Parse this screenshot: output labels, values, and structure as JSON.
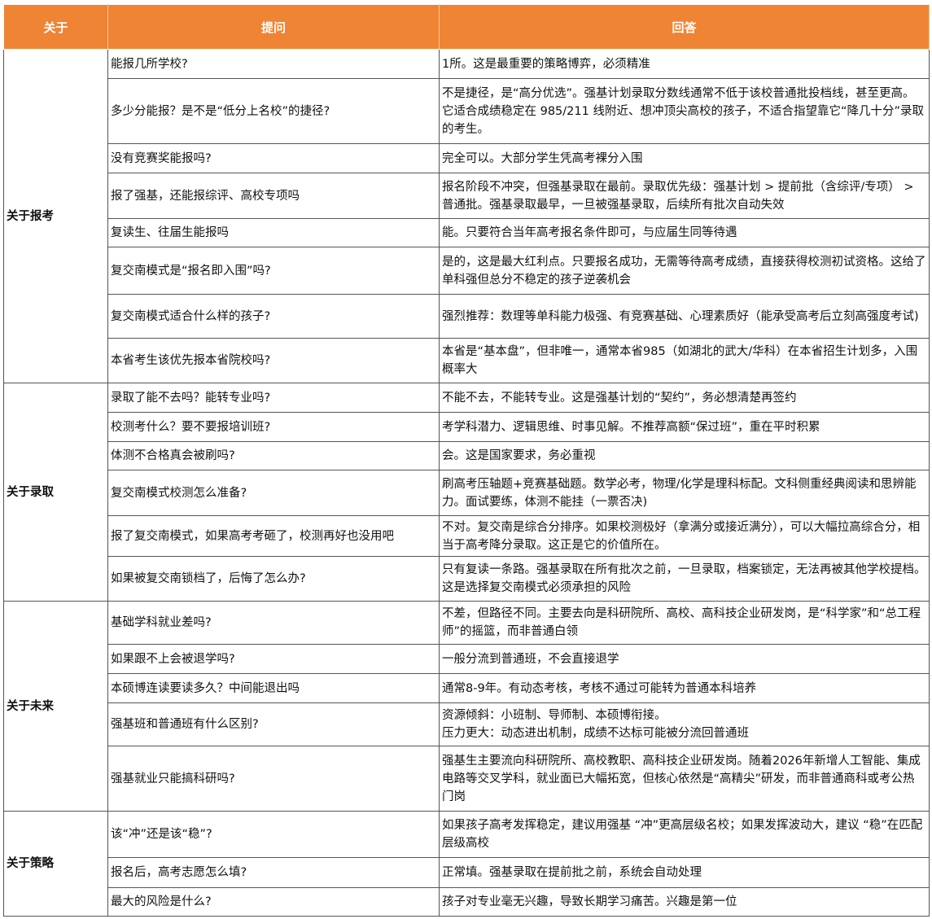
{
  "colors": {
    "header_bg": "#EE8434",
    "header_text": "#FFFFFF",
    "border": "#555555"
  },
  "header": {
    "col1": "关于",
    "col2": "提问",
    "col3": "回答"
  },
  "groups": [
    {
      "category": "关于报考",
      "rows": [
        {
          "q": "能报几所学校?",
          "a": "1所。这是最重要的策略博弈，必须精准"
        },
        {
          "q": "多少分能报？是不是“低分上名校”的捷径?",
          "a": "不是捷径，是“高分优选”。强基计划录取分数线通常不低于该校普通批投档线，甚至更高。它适合成绩稳定在 985/211 线附近、想冲顶尖高校的孩子，不适合指望靠它“降几十分”录取的考生。"
        },
        {
          "q": "没有竞赛奖能报吗?",
          "a": "完全可以。大部分学生凭高考裸分入围"
        },
        {
          "q": "报了强基，还能报综评、高校专项吗",
          "a": "报名阶段不冲突，但强基录取在最前。录取优先级：强基计划 > 提前批（含综评/专项） > 普通批。强基录取最早，一旦被强基录取，后续所有批次自动失效"
        },
        {
          "q": "复读生、往届生能报吗",
          "a": "能。只要符合当年高考报名条件即可，与应届生同等待遇"
        },
        {
          "q": "复交南模式是“报名即入围”吗?",
          "a": "是的，这是最大红利点。只要报名成功，无需等待高考成绩，直接获得校测初试资格。这给了单科强但总分不稳定的孩子逆袭机会"
        },
        {
          "q": "复交南模式适合什么样的孩子?",
          "a": "强烈推荐：数理等单科能力极强、有竞赛基础、心理素质好（能承受高考后立刻高强度考试)"
        },
        {
          "q": "本省考生该优先报本省院校吗?",
          "a": "本省是“基本盘”，但非唯一，通常本省985（如湖北的武大/华科）在本省招生计划多，入围概率大"
        }
      ]
    },
    {
      "category": "关于录取",
      "rows": [
        {
          "q": "录取了能不去吗？能转专业吗?",
          "a": "不能不去，不能转专业。这是强基计划的“契约”，务必想清楚再签约"
        },
        {
          "q": "校测考什么？要不要报培训班?",
          "a": "考学科潜力、逻辑思维、时事见解。不推荐高额“保过班”，重在平时积累"
        },
        {
          "q": "体测不合格真会被刷吗?",
          "a": "会。这是国家要求，务必重视"
        },
        {
          "q": "复交南模式校测怎么准备?",
          "a": "刷高考压轴题+竞赛基础题。数学必考，物理/化学是理科标配。文科侧重经典阅读和思辨能力。面试要练，体测不能挂（一票否决)"
        },
        {
          "q": "报了复交南模式，如果高考考砸了，校测再好也没用吧",
          "a": "不对。复交南是综合分排序。如果校测极好（拿满分或接近满分），可以大幅拉高综合分，相当于高考降分录取。这正是它的价值所在。"
        },
        {
          "q": "如果被复交南锁档了，后悔了怎么办?",
          "a": "只有复读一条路。强基录取在所有批次之前，一旦录取，档案锁定，无法再被其他学校提档。这是选择复交南模式必须承担的风险"
        }
      ]
    },
    {
      "category": "关于未来",
      "rows": [
        {
          "q": "基础学科就业差吗?",
          "a": "不差，但路径不同。主要去向是科研院所、高校、高科技企业研发岗，是“科学家”和“总工程师”的摇篮，而非普通白领"
        },
        {
          "q": "如果跟不上会被退学吗?",
          "a": "一般分流到普通班，不会直接退学"
        },
        {
          "q": "本硕博连读要读多久？中间能退出吗",
          "a": "通常8-9年。有动态考核，考核不通过可能转为普通本科培养"
        },
        {
          "q": "强基班和普通班有什么区别?",
          "a": "资源倾斜：小班制、导师制、本硕博衔接。\n压力更大：动态进出机制，成绩不达标可能被分流回普通班"
        },
        {
          "q": "强基就业只能搞科研吗?",
          "a": "强基生主要流向科研院所、高校教职、高科技企业研发岗。随着2026年新增人工智能、集成电路等交叉学科，就业面已大幅拓宽，但核心依然是“高精尖”研发，而非普通商科或考公热门岗"
        }
      ]
    },
    {
      "category": "关于策略",
      "rows": [
        {
          "q": "该“冲”还是该“稳”?",
          "a": "如果孩子高考发挥稳定，建议用强基 “冲”更高层级名校；如果发挥波动大，建议 “稳”在匹配层级高校"
        },
        {
          "q": "报名后，高考志愿怎么填?",
          "a": "正常填。强基录取在提前批之前，系统会自动处理"
        },
        {
          "q": "最大的风险是什么?",
          "a": "孩子对专业毫无兴趣，导致长期学习痛苦。兴趣是第一位"
        }
      ]
    }
  ]
}
